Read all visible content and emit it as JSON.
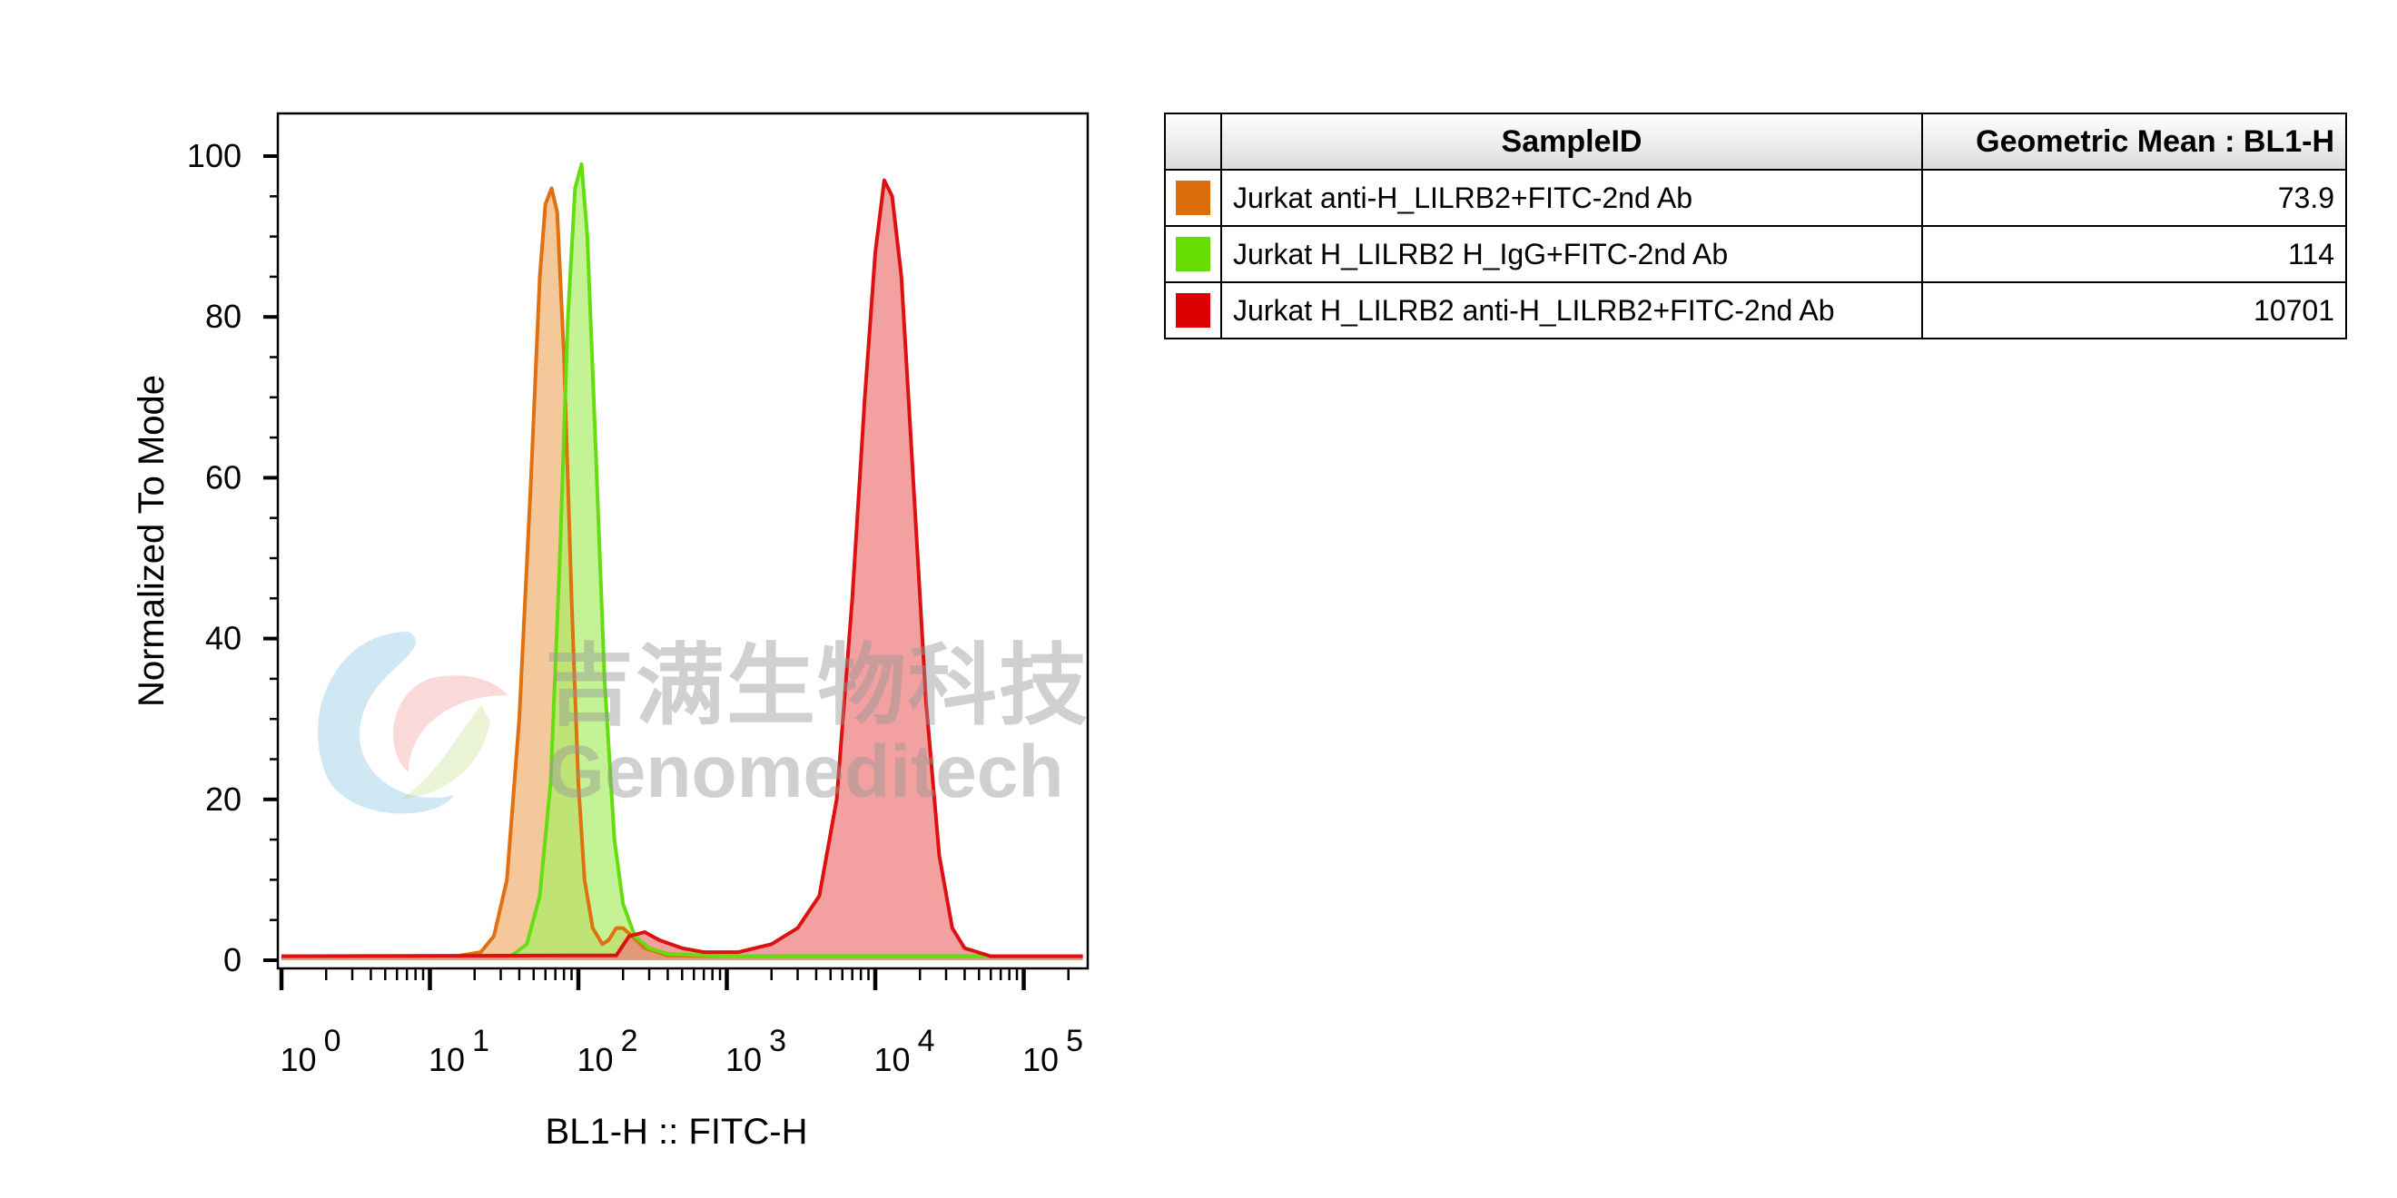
{
  "chart_data": {
    "type": "area",
    "xlabel": "BL1-H :: FITC-H",
    "ylabel": "Normalized To Mode",
    "x_scale": "log",
    "xlim": [
      1,
      250000
    ],
    "ylim": [
      0,
      100
    ],
    "y_ticks": [
      0,
      20,
      40,
      60,
      80,
      100
    ],
    "x_tick_labels": [
      {
        "base": "10",
        "exp": "0"
      },
      {
        "base": "10",
        "exp": "1"
      },
      {
        "base": "10",
        "exp": "2"
      },
      {
        "base": "10",
        "exp": "3"
      },
      {
        "base": "10",
        "exp": "4"
      },
      {
        "base": "10",
        "exp": "5"
      }
    ],
    "series": [
      {
        "name": "Jurkat anti-H_LILRB2+FITC-2nd Ab",
        "color": "#e07010",
        "fill": "#f0b070",
        "points": [
          [
            1,
            0.5
          ],
          [
            15,
            0.5
          ],
          [
            22,
            1
          ],
          [
            27,
            3
          ],
          [
            33,
            10
          ],
          [
            40,
            30
          ],
          [
            48,
            60
          ],
          [
            55,
            85
          ],
          [
            60,
            94
          ],
          [
            66,
            96
          ],
          [
            72,
            93
          ],
          [
            80,
            75
          ],
          [
            90,
            45
          ],
          [
            100,
            22
          ],
          [
            110,
            10
          ],
          [
            125,
            4
          ],
          [
            145,
            2
          ],
          [
            160,
            2.5
          ],
          [
            180,
            4
          ],
          [
            200,
            4
          ],
          [
            230,
            3
          ],
          [
            280,
            1.5
          ],
          [
            400,
            0.6
          ],
          [
            1000,
            0.5
          ],
          [
            250000,
            0.5
          ]
        ]
      },
      {
        "name": "Jurkat H_LILRB2 H_IgG+FITC-2nd Ab",
        "color": "#66dd11",
        "fill": "#aaee66",
        "points": [
          [
            1,
            0.5
          ],
          [
            35,
            0.5
          ],
          [
            45,
            2
          ],
          [
            55,
            8
          ],
          [
            65,
            22
          ],
          [
            75,
            50
          ],
          [
            85,
            80
          ],
          [
            95,
            96
          ],
          [
            105,
            99
          ],
          [
            115,
            90
          ],
          [
            130,
            65
          ],
          [
            150,
            35
          ],
          [
            175,
            15
          ],
          [
            200,
            7
          ],
          [
            240,
            3
          ],
          [
            300,
            1.5
          ],
          [
            400,
            0.8
          ],
          [
            1000,
            0.5
          ],
          [
            250000,
            0.5
          ]
        ]
      },
      {
        "name": "Jurkat H_LILRB2 anti-H_LILRB2+FITC-2nd Ab",
        "color": "#dd1111",
        "fill": "#ee7777",
        "points": [
          [
            1,
            0.5
          ],
          [
            180,
            0.6
          ],
          [
            220,
            3
          ],
          [
            280,
            3.5
          ],
          [
            350,
            2.5
          ],
          [
            500,
            1.5
          ],
          [
            700,
            1
          ],
          [
            1200,
            1
          ],
          [
            2000,
            2
          ],
          [
            3000,
            4
          ],
          [
            4200,
            8
          ],
          [
            5500,
            20
          ],
          [
            7000,
            45
          ],
          [
            8500,
            70
          ],
          [
            10000,
            88
          ],
          [
            11500,
            97
          ],
          [
            13000,
            95
          ],
          [
            15000,
            85
          ],
          [
            18000,
            60
          ],
          [
            22000,
            32
          ],
          [
            27000,
            13
          ],
          [
            33000,
            4
          ],
          [
            40000,
            1.5
          ],
          [
            60000,
            0.5
          ],
          [
            250000,
            0.5
          ]
        ]
      }
    ]
  },
  "legend": {
    "header_sample": "SampleID",
    "header_mean": "Geometric Mean : BL1-H",
    "rows": [
      {
        "sample": "Jurkat anti-H_LILRB2+FITC-2nd Ab",
        "mean": "73.9",
        "color": "#dd6c0a"
      },
      {
        "sample": "Jurkat H_LILRB2 H_IgG+FITC-2nd Ab",
        "mean": "114",
        "color": "#66dd00"
      },
      {
        "sample": "Jurkat H_LILRB2 anti-H_LILRB2+FITC-2nd Ab",
        "mean": "10701",
        "color": "#dd0000"
      }
    ]
  },
  "watermark": {
    "cn": "吉满生物科技",
    "en": "Genomeditech"
  }
}
